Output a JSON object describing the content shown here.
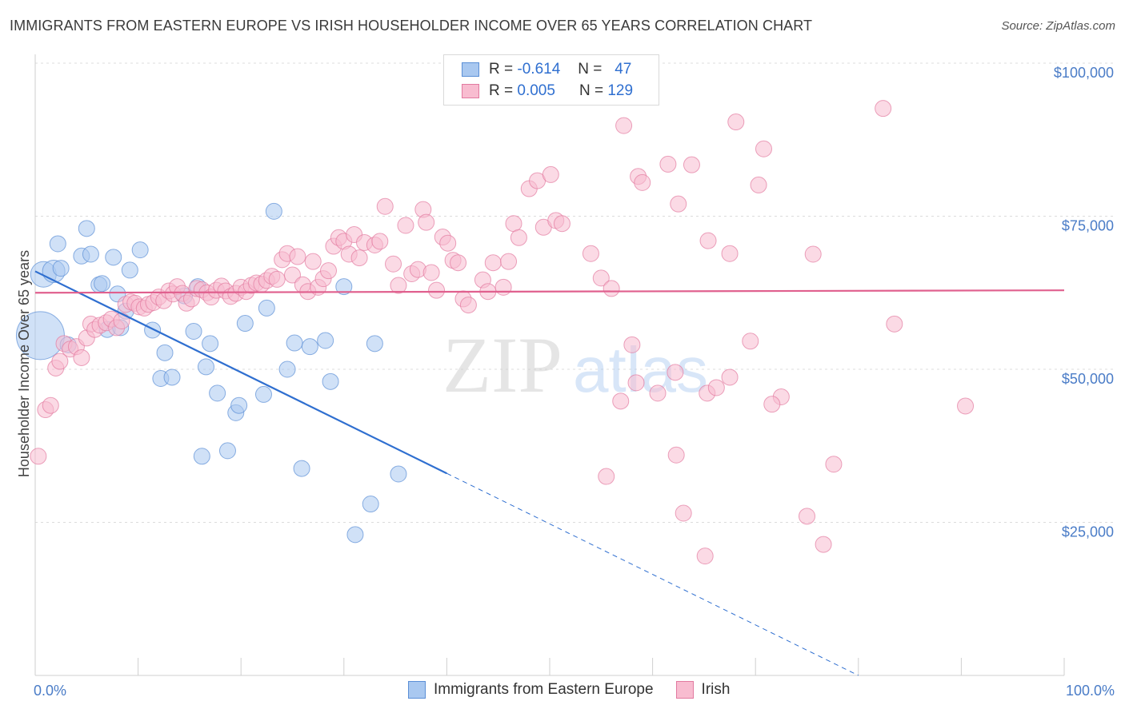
{
  "title": "IMMIGRANTS FROM EASTERN EUROPE VS IRISH HOUSEHOLDER INCOME OVER 65 YEARS CORRELATION CHART",
  "source": "Source: ZipAtlas.com",
  "watermark": {
    "zip": "ZIP",
    "atlas": "atlas"
  },
  "legend": {
    "rows": [
      {
        "r_label": "R =",
        "r_value": "-0.614",
        "n_label": "N =",
        "n_value": "47",
        "color": "#a9c8f0",
        "border": "#5b8fd6"
      },
      {
        "r_label": "R =",
        "r_value": "0.005",
        "n_label": "N =",
        "n_value": "129",
        "color": "#f8bcd0",
        "border": "#e27aa0"
      }
    ]
  },
  "bottom_legend": [
    "Immigrants from Eastern Europe",
    "Irish"
  ],
  "chart_data": {
    "type": "scatter",
    "ylabel": "Householder Income Over 65 years",
    "xlim": [
      0,
      100
    ],
    "ylim": [
      0,
      105000
    ],
    "x_tick_labels": [
      "0.0%",
      "100.0%"
    ],
    "y_ticks": [
      {
        "value": 25000,
        "label": "$25,000"
      },
      {
        "value": 50000,
        "label": "$50,000"
      },
      {
        "value": 75000,
        "label": "$75,000"
      },
      {
        "value": 100000,
        "label": "$100,000"
      }
    ],
    "grid": "horizontal-dashed",
    "series": [
      {
        "name": "Immigrants from Eastern Europe",
        "color": "#a9c8f0",
        "stroke": "#5b8fd6",
        "line_color": "#2f6fd0",
        "trend": {
          "x0": 0,
          "y0": 66000,
          "x1": 40,
          "y1": 33000,
          "dashed_to_x": 80,
          "dashed_to_y": 0
        },
        "points": [
          [
            0.5,
            55500,
            3
          ],
          [
            0.8,
            65500,
            1.6
          ],
          [
            1.8,
            66000,
            1.4
          ],
          [
            2.2,
            70500,
            1
          ],
          [
            2.5,
            66500,
            1
          ],
          [
            3.2,
            54000,
            1
          ],
          [
            4.5,
            68500,
            1
          ],
          [
            5.0,
            73000,
            1
          ],
          [
            5.4,
            68800,
            1
          ],
          [
            6.2,
            63800,
            1
          ],
          [
            7.0,
            56500,
            1
          ],
          [
            7.6,
            68300,
            1
          ],
          [
            8.0,
            62300,
            1
          ],
          [
            8.3,
            56800,
            1
          ],
          [
            8.8,
            59500,
            1
          ],
          [
            9.2,
            66200,
            1
          ],
          [
            10.2,
            69500,
            1
          ],
          [
            11.4,
            56400,
            1
          ],
          [
            12.2,
            48500,
            1
          ],
          [
            12.6,
            52700,
            1
          ],
          [
            13.3,
            48700,
            1
          ],
          [
            15.4,
            56200,
            1
          ],
          [
            14.5,
            62000,
            1
          ],
          [
            15.8,
            63500,
            1
          ],
          [
            16.2,
            35800,
            1
          ],
          [
            16.6,
            50400,
            1
          ],
          [
            17.0,
            54200,
            1
          ],
          [
            17.7,
            46100,
            1
          ],
          [
            18.7,
            36700,
            1
          ],
          [
            19.5,
            42900,
            1
          ],
          [
            19.8,
            44100,
            1
          ],
          [
            20.4,
            57500,
            1
          ],
          [
            22.2,
            45900,
            1
          ],
          [
            22.5,
            60000,
            1
          ],
          [
            23.2,
            75800,
            1
          ],
          [
            24.5,
            50000,
            1
          ],
          [
            25.2,
            54300,
            1
          ],
          [
            25.9,
            33800,
            1
          ],
          [
            26.7,
            53700,
            1
          ],
          [
            28.2,
            54700,
            1
          ],
          [
            28.7,
            48000,
            1
          ],
          [
            31.1,
            23000,
            1
          ],
          [
            30.0,
            63500,
            1
          ],
          [
            32.6,
            28000,
            1
          ],
          [
            33.0,
            54200,
            1
          ],
          [
            35.3,
            32900,
            1
          ],
          [
            6.5,
            64000,
            1
          ]
        ]
      },
      {
        "name": "Irish",
        "color": "#f8bcd0",
        "stroke": "#e27aa0",
        "line_color": "#e0608e",
        "trend": {
          "x0": 0,
          "y0": 62500,
          "x1": 100,
          "y1": 62900
        },
        "points": [
          [
            0.3,
            35800,
            1
          ],
          [
            1.0,
            43400,
            1
          ],
          [
            1.5,
            44100,
            1
          ],
          [
            2.0,
            50200,
            1
          ],
          [
            2.4,
            51300,
            1
          ],
          [
            2.8,
            54200,
            1
          ],
          [
            3.4,
            53300,
            1
          ],
          [
            4.0,
            53700,
            1
          ],
          [
            4.5,
            51900,
            1
          ],
          [
            5.0,
            55100,
            1
          ],
          [
            5.4,
            57400,
            1
          ],
          [
            5.8,
            56500,
            1
          ],
          [
            6.3,
            57200,
            1
          ],
          [
            6.9,
            57600,
            1
          ],
          [
            7.4,
            58200,
            1
          ],
          [
            7.9,
            56800,
            1
          ],
          [
            8.4,
            57900,
            1
          ],
          [
            8.8,
            60600,
            1
          ],
          [
            9.3,
            61000,
            1
          ],
          [
            9.7,
            60800,
            1
          ],
          [
            10.1,
            60200,
            1
          ],
          [
            10.6,
            60000,
            1
          ],
          [
            11.0,
            60600,
            1
          ],
          [
            11.5,
            60900,
            1
          ],
          [
            12.0,
            61800,
            1
          ],
          [
            12.5,
            61200,
            1
          ],
          [
            13.0,
            62800,
            1
          ],
          [
            13.4,
            62300,
            1
          ],
          [
            13.8,
            63500,
            1
          ],
          [
            14.3,
            62400,
            1
          ],
          [
            14.7,
            60800,
            1
          ],
          [
            15.2,
            61500,
            1
          ],
          [
            15.7,
            63200,
            1
          ],
          [
            16.2,
            63000,
            1
          ],
          [
            16.7,
            62500,
            1
          ],
          [
            17.1,
            61800,
            1
          ],
          [
            17.6,
            62900,
            1
          ],
          [
            18.1,
            63600,
            1
          ],
          [
            18.5,
            62800,
            1
          ],
          [
            19.0,
            61900,
            1
          ],
          [
            19.5,
            62400,
            1
          ],
          [
            20.0,
            63400,
            1
          ],
          [
            20.5,
            62700,
            1
          ],
          [
            21.0,
            63700,
            1
          ],
          [
            21.5,
            64100,
            1
          ],
          [
            22.0,
            63900,
            1
          ],
          [
            22.5,
            64500,
            1
          ],
          [
            23.0,
            65200,
            1
          ],
          [
            23.5,
            64700,
            1
          ],
          [
            24.0,
            67900,
            1
          ],
          [
            24.5,
            68900,
            1
          ],
          [
            25.0,
            65400,
            1
          ],
          [
            25.5,
            68400,
            1
          ],
          [
            26.0,
            63800,
            1
          ],
          [
            26.5,
            62700,
            1
          ],
          [
            27.0,
            67600,
            1
          ],
          [
            27.5,
            63400,
            1
          ],
          [
            28.0,
            64800,
            1
          ],
          [
            28.5,
            66100,
            1
          ],
          [
            29.0,
            70100,
            1
          ],
          [
            29.5,
            71500,
            1
          ],
          [
            30.0,
            70900,
            1
          ],
          [
            30.5,
            68800,
            1
          ],
          [
            31.0,
            72000,
            1
          ],
          [
            31.5,
            68200,
            1
          ],
          [
            32.0,
            70700,
            1
          ],
          [
            33.0,
            70300,
            1
          ],
          [
            33.5,
            70900,
            1
          ],
          [
            34.0,
            76600,
            1
          ],
          [
            34.8,
            67200,
            1
          ],
          [
            35.3,
            63700,
            1
          ],
          [
            36.0,
            73500,
            1
          ],
          [
            36.6,
            65600,
            1
          ],
          [
            37.2,
            66300,
            1
          ],
          [
            37.7,
            76100,
            1
          ],
          [
            38.0,
            74000,
            1
          ],
          [
            38.5,
            65800,
            1
          ],
          [
            39.0,
            62900,
            1
          ],
          [
            39.6,
            71600,
            1
          ],
          [
            40.1,
            70600,
            1
          ],
          [
            40.6,
            67800,
            1
          ],
          [
            41.1,
            67400,
            1
          ],
          [
            41.6,
            61500,
            1
          ],
          [
            42.1,
            60500,
            1
          ],
          [
            43.5,
            64600,
            1
          ],
          [
            44.0,
            62700,
            1
          ],
          [
            44.5,
            67400,
            1
          ],
          [
            45.5,
            63400,
            1
          ],
          [
            46.0,
            67600,
            1
          ],
          [
            46.5,
            73800,
            1
          ],
          [
            47.0,
            71500,
            1
          ],
          [
            48.0,
            79500,
            1
          ],
          [
            48.8,
            80800,
            1
          ],
          [
            49.4,
            73200,
            1
          ],
          [
            50.1,
            81800,
            1
          ],
          [
            50.6,
            74300,
            1
          ],
          [
            51.2,
            73800,
            1
          ],
          [
            54.0,
            68900,
            1
          ],
          [
            55.0,
            64900,
            1
          ],
          [
            56.0,
            63200,
            1
          ],
          [
            44.1,
            98700,
            1
          ],
          [
            57.2,
            89800,
            1
          ],
          [
            58.6,
            81500,
            1
          ],
          [
            59.0,
            80500,
            1
          ],
          [
            61.5,
            83500,
            1
          ],
          [
            62.5,
            77000,
            1
          ],
          [
            63.8,
            83400,
            1
          ],
          [
            65.4,
            71000,
            1
          ],
          [
            67.5,
            68900,
            1
          ],
          [
            68.1,
            90400,
            1
          ],
          [
            70.3,
            80100,
            1
          ],
          [
            70.8,
            86000,
            1
          ],
          [
            72.5,
            45500,
            1
          ],
          [
            75.6,
            68800,
            1
          ],
          [
            75.0,
            26000,
            1
          ],
          [
            77.6,
            34500,
            1
          ],
          [
            76.6,
            21400,
            1
          ],
          [
            82.4,
            92600,
            1
          ],
          [
            83.5,
            57400,
            1
          ],
          [
            90.4,
            44000,
            1
          ],
          [
            55.5,
            32500,
            1
          ],
          [
            56.9,
            44800,
            1
          ],
          [
            58.4,
            47800,
            1
          ],
          [
            60.5,
            46100,
            1
          ],
          [
            62.3,
            36000,
            1
          ],
          [
            63.0,
            26500,
            1
          ],
          [
            65.3,
            46100,
            1
          ],
          [
            66.2,
            47000,
            1
          ],
          [
            69.5,
            54600,
            1
          ],
          [
            71.6,
            44300,
            1
          ],
          [
            65.1,
            19500,
            1
          ],
          [
            58.0,
            54000,
            1
          ],
          [
            67.5,
            48700,
            1
          ],
          [
            62.2,
            49500,
            1
          ]
        ]
      }
    ]
  }
}
